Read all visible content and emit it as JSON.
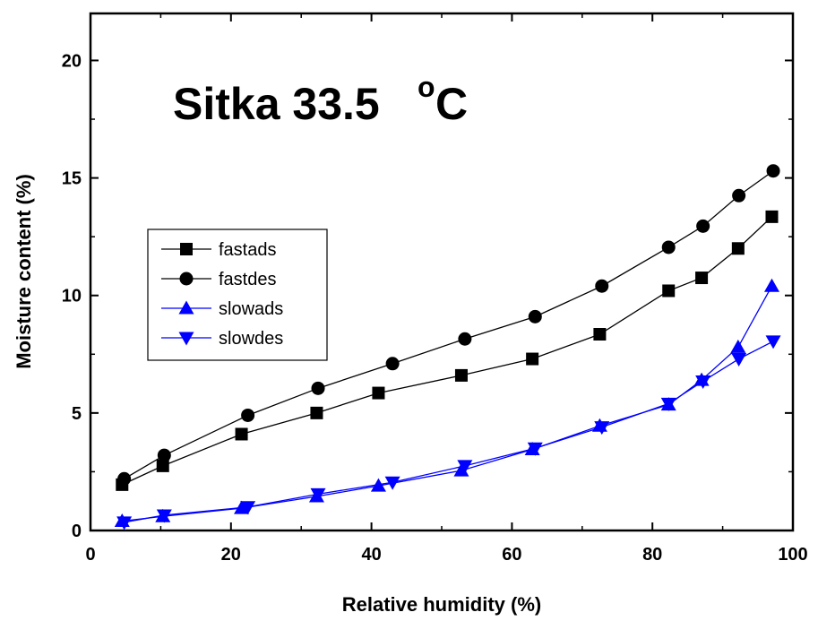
{
  "chart_data": {
    "type": "line",
    "title": "Sitka 33.5",
    "title_sup": "o",
    "title_unit": "C",
    "xlabel": "Relative humidity (%)",
    "ylabel": "Moisture content (%)",
    "xlim": [
      0,
      100
    ],
    "ylim": [
      0,
      22
    ],
    "xticks": [
      0,
      20,
      40,
      60,
      80,
      100
    ],
    "yticks": [
      0,
      5,
      10,
      15,
      20
    ],
    "grid": false,
    "legend_position": "center-left",
    "series": [
      {
        "name": "fastads",
        "color": "#000000",
        "marker": "square",
        "x": [
          4.5,
          10.3,
          21.5,
          32.2,
          41.0,
          52.8,
          62.9,
          72.5,
          82.3,
          87.0,
          92.2,
          97.0
        ],
        "y": [
          1.95,
          2.75,
          4.1,
          5.0,
          5.85,
          6.6,
          7.3,
          8.35,
          10.2,
          10.75,
          12.0,
          13.35
        ]
      },
      {
        "name": "fastdes",
        "color": "#000000",
        "marker": "circle",
        "x": [
          4.8,
          10.5,
          22.4,
          32.4,
          43.0,
          53.3,
          63.3,
          72.8,
          82.3,
          87.2,
          92.3,
          97.2
        ],
        "y": [
          2.2,
          3.2,
          4.9,
          6.05,
          7.1,
          8.15,
          9.1,
          10.4,
          12.05,
          12.95,
          14.25,
          15.3
        ]
      },
      {
        "name": "slowads",
        "color": "#0000ff",
        "marker": "triangle-up",
        "x": [
          4.5,
          10.3,
          21.5,
          32.2,
          41.0,
          52.8,
          62.9,
          72.5,
          82.3,
          87.0,
          92.2,
          97.0
        ],
        "y": [
          0.4,
          0.6,
          0.95,
          1.45,
          1.9,
          2.55,
          3.45,
          4.45,
          5.35,
          6.4,
          7.8,
          10.4
        ]
      },
      {
        "name": "slowdes",
        "color": "#0000ff",
        "marker": "triangle-down",
        "x": [
          4.8,
          10.5,
          22.4,
          32.4,
          43.0,
          53.3,
          63.3,
          72.8,
          82.3,
          87.2,
          92.3,
          97.2
        ],
        "y": [
          0.35,
          0.65,
          1.0,
          1.55,
          2.05,
          2.75,
          3.5,
          4.4,
          5.4,
          6.35,
          7.3,
          8.05
        ]
      }
    ]
  }
}
